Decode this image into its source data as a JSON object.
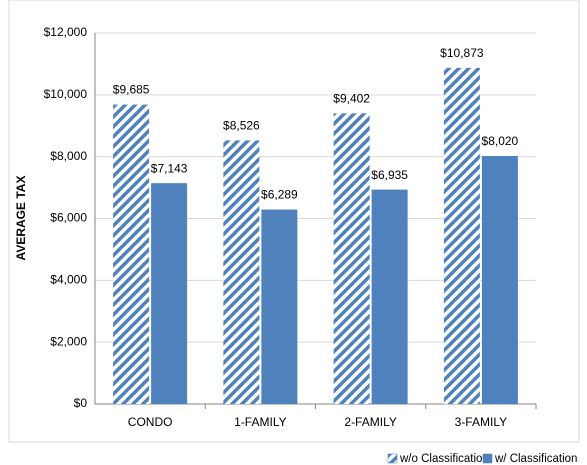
{
  "chart_data": {
    "type": "bar",
    "y_label": "AVERAGE TAX",
    "categories": [
      "CONDO",
      "1-FAMILY",
      "2-FAMILY",
      "3-FAMILY"
    ],
    "series": [
      {
        "name": "w/o Classification",
        "color": "#4f81bd",
        "pattern": "hatch",
        "values": [
          9685,
          8526,
          9402,
          10873
        ],
        "value_labels": [
          "$9,685",
          "$8,526",
          "$9,402",
          "$10,873"
        ]
      },
      {
        "name": "w/ Classification",
        "color": "#4f81bd",
        "pattern": "solid",
        "values": [
          7143,
          6289,
          6935,
          8020
        ],
        "value_labels": [
          "$7,143",
          "$6,289",
          "$6,935",
          "$8,020"
        ]
      }
    ],
    "ylim": [
      0,
      12000
    ],
    "yticks": [
      {
        "value": 0,
        "label": "$0"
      },
      {
        "value": 2000,
        "label": "$2,000"
      },
      {
        "value": 4000,
        "label": "$4,000"
      },
      {
        "value": 6000,
        "label": "$6,000"
      },
      {
        "value": 8000,
        "label": "$8,000"
      },
      {
        "value": 10000,
        "label": "$10,000"
      },
      {
        "value": 12000,
        "label": "$12,000"
      }
    ],
    "grid": true,
    "legend": "bottom-right"
  }
}
